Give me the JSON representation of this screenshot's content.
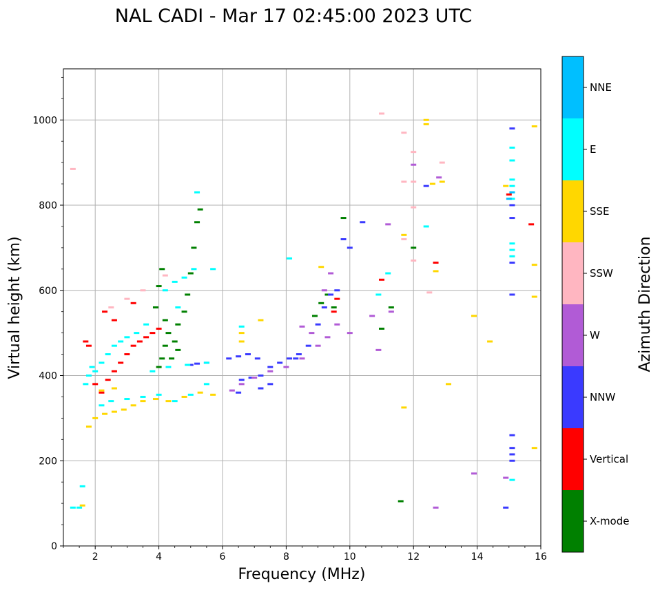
{
  "chart_data": {
    "type": "scatter",
    "title": "NAL CADI - Mar 17 02:45:00 2023 UTC",
    "xlabel": "Frequency (MHz)",
    "ylabel": "Virtual height (km)",
    "xlim": [
      1,
      16
    ],
    "ylim": [
      0,
      1120
    ],
    "xticks": [
      2,
      4,
      6,
      8,
      10,
      12,
      14,
      16
    ],
    "yticks": [
      0,
      200,
      400,
      600,
      800,
      1000
    ],
    "grid": true,
    "colorbar": {
      "title": "Azimuth Direction",
      "categories": [
        {
          "name": "X-mode",
          "color": "#008000"
        },
        {
          "name": "Vertical",
          "color": "#ff0000"
        },
        {
          "name": "NNW",
          "color": "#3a3aff"
        },
        {
          "name": "W",
          "color": "#b15bd6"
        },
        {
          "name": "SSW",
          "color": "#ffb6c1"
        },
        {
          "name": "SSE",
          "color": "#ffd700"
        },
        {
          "name": "E",
          "color": "#00ffff"
        },
        {
          "name": "NNE",
          "color": "#00bfff"
        }
      ]
    },
    "series": [
      {
        "name": "X-mode",
        "points": [
          [
            4.0,
            420
          ],
          [
            4.1,
            440
          ],
          [
            4.2,
            470
          ],
          [
            4.3,
            500
          ],
          [
            4.5,
            480
          ],
          [
            4.6,
            520
          ],
          [
            4.8,
            550
          ],
          [
            4.9,
            590
          ],
          [
            5.0,
            640
          ],
          [
            5.1,
            700
          ],
          [
            5.2,
            760
          ],
          [
            5.3,
            790
          ],
          [
            3.9,
            560
          ],
          [
            4.0,
            610
          ],
          [
            4.1,
            650
          ],
          [
            4.2,
            530
          ],
          [
            4.4,
            440
          ],
          [
            4.6,
            460
          ],
          [
            9.8,
            770
          ],
          [
            9.5,
            560
          ],
          [
            9.3,
            590
          ],
          [
            11.0,
            510
          ],
          [
            11.3,
            560
          ],
          [
            11.6,
            105
          ],
          [
            12.0,
            700
          ],
          [
            8.9,
            540
          ],
          [
            9.1,
            570
          ]
        ]
      },
      {
        "name": "Vertical",
        "points": [
          [
            1.7,
            480
          ],
          [
            1.8,
            470
          ],
          [
            2.0,
            380
          ],
          [
            2.2,
            360
          ],
          [
            2.4,
            390
          ],
          [
            2.6,
            410
          ],
          [
            2.8,
            430
          ],
          [
            3.0,
            450
          ],
          [
            3.2,
            470
          ],
          [
            3.4,
            480
          ],
          [
            3.6,
            490
          ],
          [
            3.8,
            500
          ],
          [
            4.0,
            510
          ],
          [
            2.3,
            550
          ],
          [
            2.6,
            530
          ],
          [
            3.2,
            570
          ],
          [
            9.5,
            550
          ],
          [
            9.6,
            580
          ],
          [
            11.0,
            625
          ],
          [
            12.7,
            665
          ],
          [
            15.0,
            825
          ],
          [
            15.7,
            755
          ]
        ]
      },
      {
        "name": "NNW",
        "points": [
          [
            5.0,
            425
          ],
          [
            5.2,
            428
          ],
          [
            5.5,
            430
          ],
          [
            6.2,
            440
          ],
          [
            6.5,
            445
          ],
          [
            6.8,
            450
          ],
          [
            7.1,
            440
          ],
          [
            6.6,
            390
          ],
          [
            6.9,
            395
          ],
          [
            7.2,
            400
          ],
          [
            7.5,
            420
          ],
          [
            7.8,
            430
          ],
          [
            8.1,
            440
          ],
          [
            8.4,
            450
          ],
          [
            8.7,
            470
          ],
          [
            9.0,
            520
          ],
          [
            9.2,
            560
          ],
          [
            9.4,
            590
          ],
          [
            9.6,
            600
          ],
          [
            9.8,
            720
          ],
          [
            10.0,
            700
          ],
          [
            7.2,
            370
          ],
          [
            7.5,
            380
          ],
          [
            6.5,
            360
          ],
          [
            12.4,
            845
          ],
          [
            15.1,
            980
          ],
          [
            15.1,
            800
          ],
          [
            15.1,
            770
          ],
          [
            15.1,
            665
          ],
          [
            15.1,
            590
          ],
          [
            15.1,
            260
          ],
          [
            15.1,
            230
          ],
          [
            15.1,
            215
          ],
          [
            15.1,
            200
          ],
          [
            14.9,
            90
          ],
          [
            8.3,
            440
          ],
          [
            10.4,
            760
          ]
        ]
      },
      {
        "name": "W",
        "points": [
          [
            6.3,
            365
          ],
          [
            6.6,
            380
          ],
          [
            7.0,
            395
          ],
          [
            7.5,
            410
          ],
          [
            8.0,
            420
          ],
          [
            8.5,
            440
          ],
          [
            9.0,
            470
          ],
          [
            9.3,
            490
          ],
          [
            9.6,
            520
          ],
          [
            10.0,
            500
          ],
          [
            9.4,
            640
          ],
          [
            9.2,
            600
          ],
          [
            10.7,
            540
          ],
          [
            11.3,
            550
          ],
          [
            11.2,
            755
          ],
          [
            12.0,
            895
          ],
          [
            12.8,
            865
          ],
          [
            12.7,
            90
          ],
          [
            13.9,
            170
          ],
          [
            14.9,
            160
          ],
          [
            10.9,
            460
          ],
          [
            8.8,
            500
          ],
          [
            8.5,
            515
          ]
        ]
      },
      {
        "name": "SSW",
        "points": [
          [
            1.3,
            885
          ],
          [
            2.5,
            560
          ],
          [
            3.0,
            580
          ],
          [
            3.5,
            600
          ],
          [
            4.2,
            635
          ],
          [
            11.0,
            1015
          ],
          [
            11.7,
            970
          ],
          [
            12.0,
            925
          ],
          [
            12.0,
            855
          ],
          [
            12.0,
            795
          ],
          [
            12.0,
            670
          ],
          [
            12.9,
            900
          ],
          [
            11.7,
            855
          ],
          [
            11.7,
            720
          ],
          [
            12.5,
            595
          ]
        ]
      },
      {
        "name": "SSE",
        "points": [
          [
            1.8,
            280
          ],
          [
            2.0,
            300
          ],
          [
            2.3,
            310
          ],
          [
            2.6,
            315
          ],
          [
            2.9,
            320
          ],
          [
            3.2,
            330
          ],
          [
            3.5,
            340
          ],
          [
            3.9,
            345
          ],
          [
            4.3,
            340
          ],
          [
            4.8,
            350
          ],
          [
            5.3,
            360
          ],
          [
            5.7,
            355
          ],
          [
            1.6,
            95
          ],
          [
            2.2,
            365
          ],
          [
            2.6,
            370
          ],
          [
            6.6,
            480
          ],
          [
            6.6,
            500
          ],
          [
            7.2,
            530
          ],
          [
            9.1,
            655
          ],
          [
            11.7,
            730
          ],
          [
            11.7,
            325
          ],
          [
            12.4,
            1000
          ],
          [
            12.4,
            990
          ],
          [
            12.6,
            850
          ],
          [
            12.9,
            855
          ],
          [
            12.7,
            645
          ],
          [
            13.1,
            380
          ],
          [
            13.9,
            540
          ],
          [
            14.4,
            480
          ],
          [
            14.9,
            845
          ],
          [
            15.8,
            985
          ],
          [
            15.8,
            660
          ],
          [
            15.8,
            585
          ],
          [
            15.8,
            230
          ]
        ]
      },
      {
        "name": "E",
        "points": [
          [
            1.3,
            90
          ],
          [
            1.5,
            90
          ],
          [
            1.6,
            140
          ],
          [
            1.7,
            380
          ],
          [
            1.8,
            400
          ],
          [
            1.9,
            420
          ],
          [
            2.0,
            410
          ],
          [
            2.2,
            430
          ],
          [
            2.4,
            450
          ],
          [
            2.6,
            470
          ],
          [
            2.8,
            480
          ],
          [
            3.0,
            490
          ],
          [
            3.3,
            500
          ],
          [
            3.6,
            520
          ],
          [
            4.2,
            600
          ],
          [
            4.5,
            620
          ],
          [
            4.8,
            630
          ],
          [
            5.1,
            650
          ],
          [
            5.2,
            830
          ],
          [
            2.2,
            330
          ],
          [
            2.5,
            340
          ],
          [
            3.0,
            345
          ],
          [
            3.5,
            350
          ],
          [
            4.0,
            355
          ],
          [
            4.5,
            340
          ],
          [
            5.0,
            355
          ],
          [
            5.5,
            380
          ],
          [
            3.8,
            410
          ],
          [
            4.3,
            420
          ],
          [
            4.9,
            425
          ],
          [
            5.5,
            430
          ],
          [
            6.6,
            515
          ],
          [
            8.1,
            675
          ],
          [
            11.2,
            640
          ],
          [
            12.4,
            750
          ],
          [
            15.1,
            935
          ],
          [
            15.1,
            905
          ],
          [
            15.1,
            860
          ],
          [
            15.1,
            845
          ],
          [
            15.1,
            815
          ],
          [
            15.1,
            710
          ],
          [
            15.1,
            695
          ],
          [
            15.1,
            680
          ],
          [
            15.1,
            155
          ],
          [
            10.9,
            590
          ],
          [
            4.6,
            560
          ],
          [
            5.7,
            650
          ]
        ]
      },
      {
        "name": "NNE",
        "points": [
          [
            15.1,
            830
          ],
          [
            15.0,
            815
          ]
        ]
      }
    ]
  }
}
